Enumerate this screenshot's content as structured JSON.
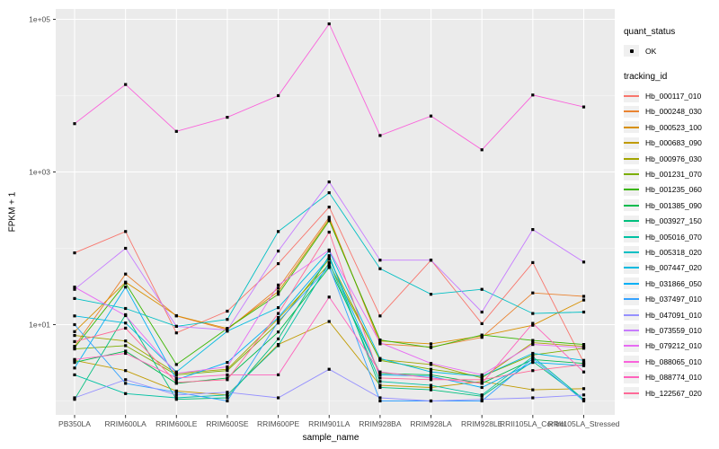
{
  "figure": {
    "background": "#FFFFFF",
    "panel_background": "#EBEBEB",
    "gridline_color": "#FFFFFF",
    "tick_label_color": "#4D4D4D",
    "point_color": "#000000"
  },
  "chart_data": {
    "type": "line",
    "title": "",
    "xlabel": "sample_name",
    "ylabel": "FPKM + 1",
    "y_scale": "log10",
    "ylim": [
      0.7,
      140000
    ],
    "grid": "major-minor-white-on-gray",
    "legend_position": "right",
    "y_major_ticks": [
      {
        "label": "1e+01",
        "value": 10
      },
      {
        "label": "1e+03",
        "value": 1000
      },
      {
        "label": "1e+05",
        "value": 100000
      }
    ],
    "y_minor_values": [
      1,
      100,
      10000
    ],
    "categories": [
      "PB350LA",
      "RRIM600LA",
      "RRIM600LE",
      "RRIM600SE",
      "RRIM600PE",
      "RRIM901LA",
      "RRIM928BA",
      "RRIM928LA",
      "RRIM928LE",
      "RRII105LA_Control",
      "RRII105LA_Stressed"
    ],
    "legend": {
      "quant_status": {
        "title": "quant_status",
        "items": [
          {
            "label": "OK",
            "shape": "black-point"
          }
        ]
      },
      "tracking_id": {
        "title": "tracking_id"
      }
    },
    "series": [
      {
        "id": "Hb_000117_010",
        "color": "#F8766D",
        "values": [
          87,
          166,
          7.8,
          15,
          63,
          347,
          13,
          70,
          10.3,
          65,
          3.2
        ]
      },
      {
        "id": "Hb_000248_030",
        "color": "#EA8331",
        "values": [
          5.2,
          46,
          13,
          8.6,
          30,
          255,
          5.6,
          5.1,
          6.8,
          26,
          23.5
        ]
      },
      {
        "id": "Hb_000523_100",
        "color": "#D89000",
        "values": [
          8.1,
          36,
          13.1,
          8.9,
          27,
          240,
          6.1,
          5.6,
          7.1,
          9.8,
          21
        ]
      },
      {
        "id": "Hb_000683_090",
        "color": "#C09B00",
        "values": [
          3.4,
          2.5,
          1.35,
          1.2,
          5.5,
          11,
          1.6,
          1.5,
          1.8,
          1.4,
          1.45
        ]
      },
      {
        "id": "Hb_000976_030",
        "color": "#A3A500",
        "values": [
          7.2,
          6.1,
          2.3,
          2.6,
          12,
          62,
          3.5,
          3.0,
          2.0,
          5.8,
          5.2
        ]
      },
      {
        "id": "Hb_001231_070",
        "color": "#7CAE00",
        "values": [
          4.8,
          5.3,
          2.2,
          2.5,
          10.5,
          72,
          3.4,
          2.6,
          2.1,
          4.0,
          4.9
        ]
      },
      {
        "id": "Hb_001235_060",
        "color": "#39B600",
        "values": [
          5.0,
          35,
          3.0,
          8.9,
          25,
          230,
          6.3,
          5.0,
          7.3,
          6.2,
          5.5
        ]
      },
      {
        "id": "Hb_001385_090",
        "color": "#00BB4E",
        "values": [
          3.2,
          4.5,
          1.7,
          2.0,
          8.0,
          56,
          2.3,
          2.2,
          1.7,
          3.5,
          3.1
        ]
      },
      {
        "id": "Hb_003927_150",
        "color": "#00BF7D",
        "values": [
          1.05,
          13.5,
          1.05,
          1.1,
          6.5,
          80,
          1.5,
          1.4,
          1.15,
          3.3,
          1.05
        ]
      },
      {
        "id": "Hb_005016_070",
        "color": "#00C1A3",
        "values": [
          2.2,
          1.25,
          1.1,
          1.2,
          5.3,
          65,
          1.8,
          1.6,
          1.2,
          3.8,
          1.05
        ]
      },
      {
        "id": "Hb_005318_020",
        "color": "#00BFC4",
        "values": [
          22,
          16.3,
          9.5,
          11.7,
          166,
          535,
          54,
          25,
          29,
          14,
          14.6
        ]
      },
      {
        "id": "Hb_007447_020",
        "color": "#00BAE0",
        "values": [
          13,
          10.5,
          2.4,
          8.2,
          16.7,
          92,
          3.6,
          2.4,
          2.1,
          4.2,
          3.4
        ]
      },
      {
        "id": "Hb_031866_050",
        "color": "#00B0F6",
        "values": [
          2.7,
          31,
          1.9,
          3.2,
          12.4,
          75,
          2.2,
          2.1,
          1.5,
          3.2,
          2.9
        ]
      },
      {
        "id": "Hb_037497_010",
        "color": "#35A2FF",
        "values": [
          10,
          1.7,
          1.3,
          1.0,
          11,
          58,
          1.0,
          1.0,
          1.0,
          3.6,
          1.0
        ]
      },
      {
        "id": "Hb_047091_010",
        "color": "#9590FF",
        "values": [
          1.1,
          1.9,
          1.2,
          1.3,
          1.1,
          2.6,
          1.1,
          1.0,
          1.05,
          1.1,
          1.2
        ]
      },
      {
        "id": "Hb_073559_010",
        "color": "#C77CFF",
        "values": [
          29,
          100,
          9.5,
          8.5,
          92,
          740,
          70,
          70,
          14.6,
          176,
          66
        ]
      },
      {
        "id": "Hb_079212_010",
        "color": "#E76BF3",
        "values": [
          31,
          13.1,
          2.3,
          2.8,
          33,
          95,
          5.8,
          3.1,
          2.2,
          5.5,
          5.0
        ]
      },
      {
        "id": "Hb_088065_010",
        "color": "#FA62DB",
        "values": [
          4300,
          14000,
          3400,
          5200,
          10000,
          87000,
          3000,
          5400,
          1950,
          10200,
          7100
        ]
      },
      {
        "id": "Hb_088774_010",
        "color": "#FF62BC",
        "values": [
          3.5,
          4.2,
          2.0,
          2.2,
          2.2,
          23,
          2.4,
          2.0,
          1.7,
          10.4,
          2.4
        ]
      },
      {
        "id": "Hb_122567_020",
        "color": "#FF6A98",
        "values": [
          6.0,
          9.0,
          1.75,
          1.9,
          14,
          163,
          2.0,
          1.9,
          1.9,
          2.5,
          3.0
        ]
      }
    ]
  }
}
